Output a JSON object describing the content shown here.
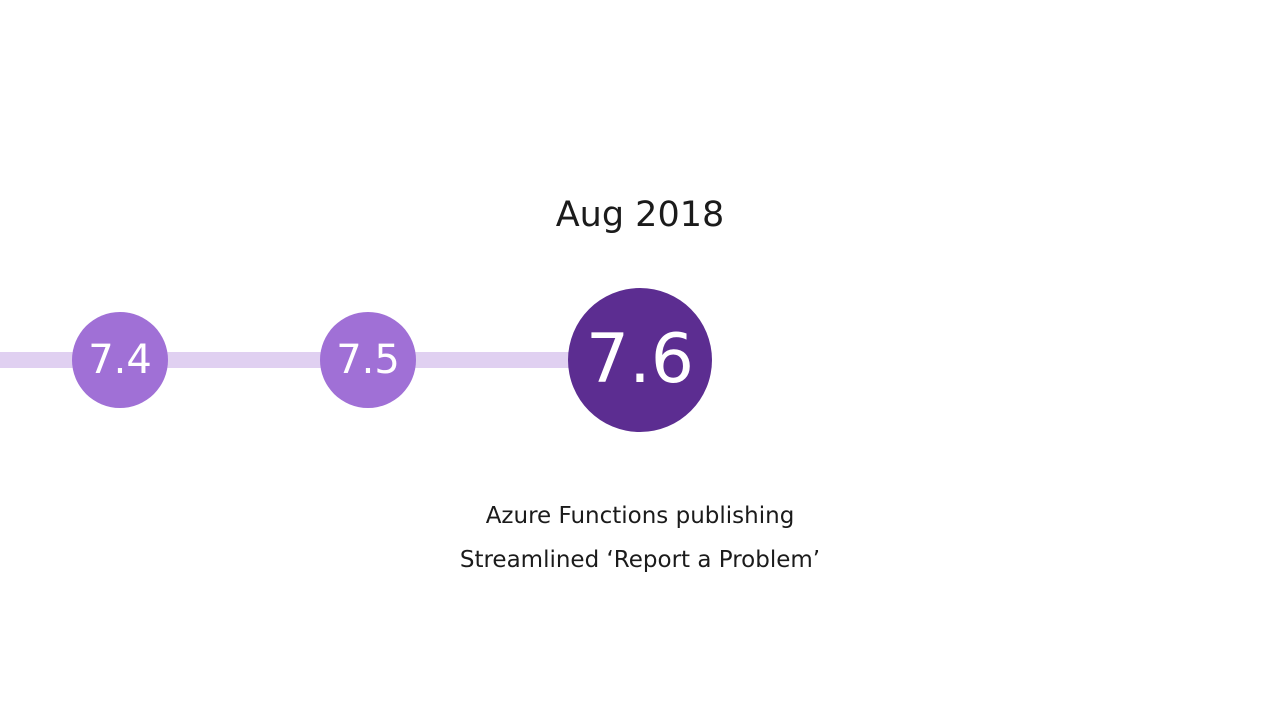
{
  "slide": {
    "date": "Aug 2018",
    "versions": [
      {
        "label": "7.4",
        "status": "past"
      },
      {
        "label": "7.5",
        "status": "past"
      },
      {
        "label": "7.6",
        "status": "current"
      }
    ],
    "features": [
      "Azure Functions publishing",
      "Streamlined ‘Report a Problem’"
    ],
    "colors": {
      "track": "#e0d0f1",
      "past_node": "#a070d6",
      "current_node": "#5c2d91",
      "text": "#1b1b1b"
    }
  }
}
